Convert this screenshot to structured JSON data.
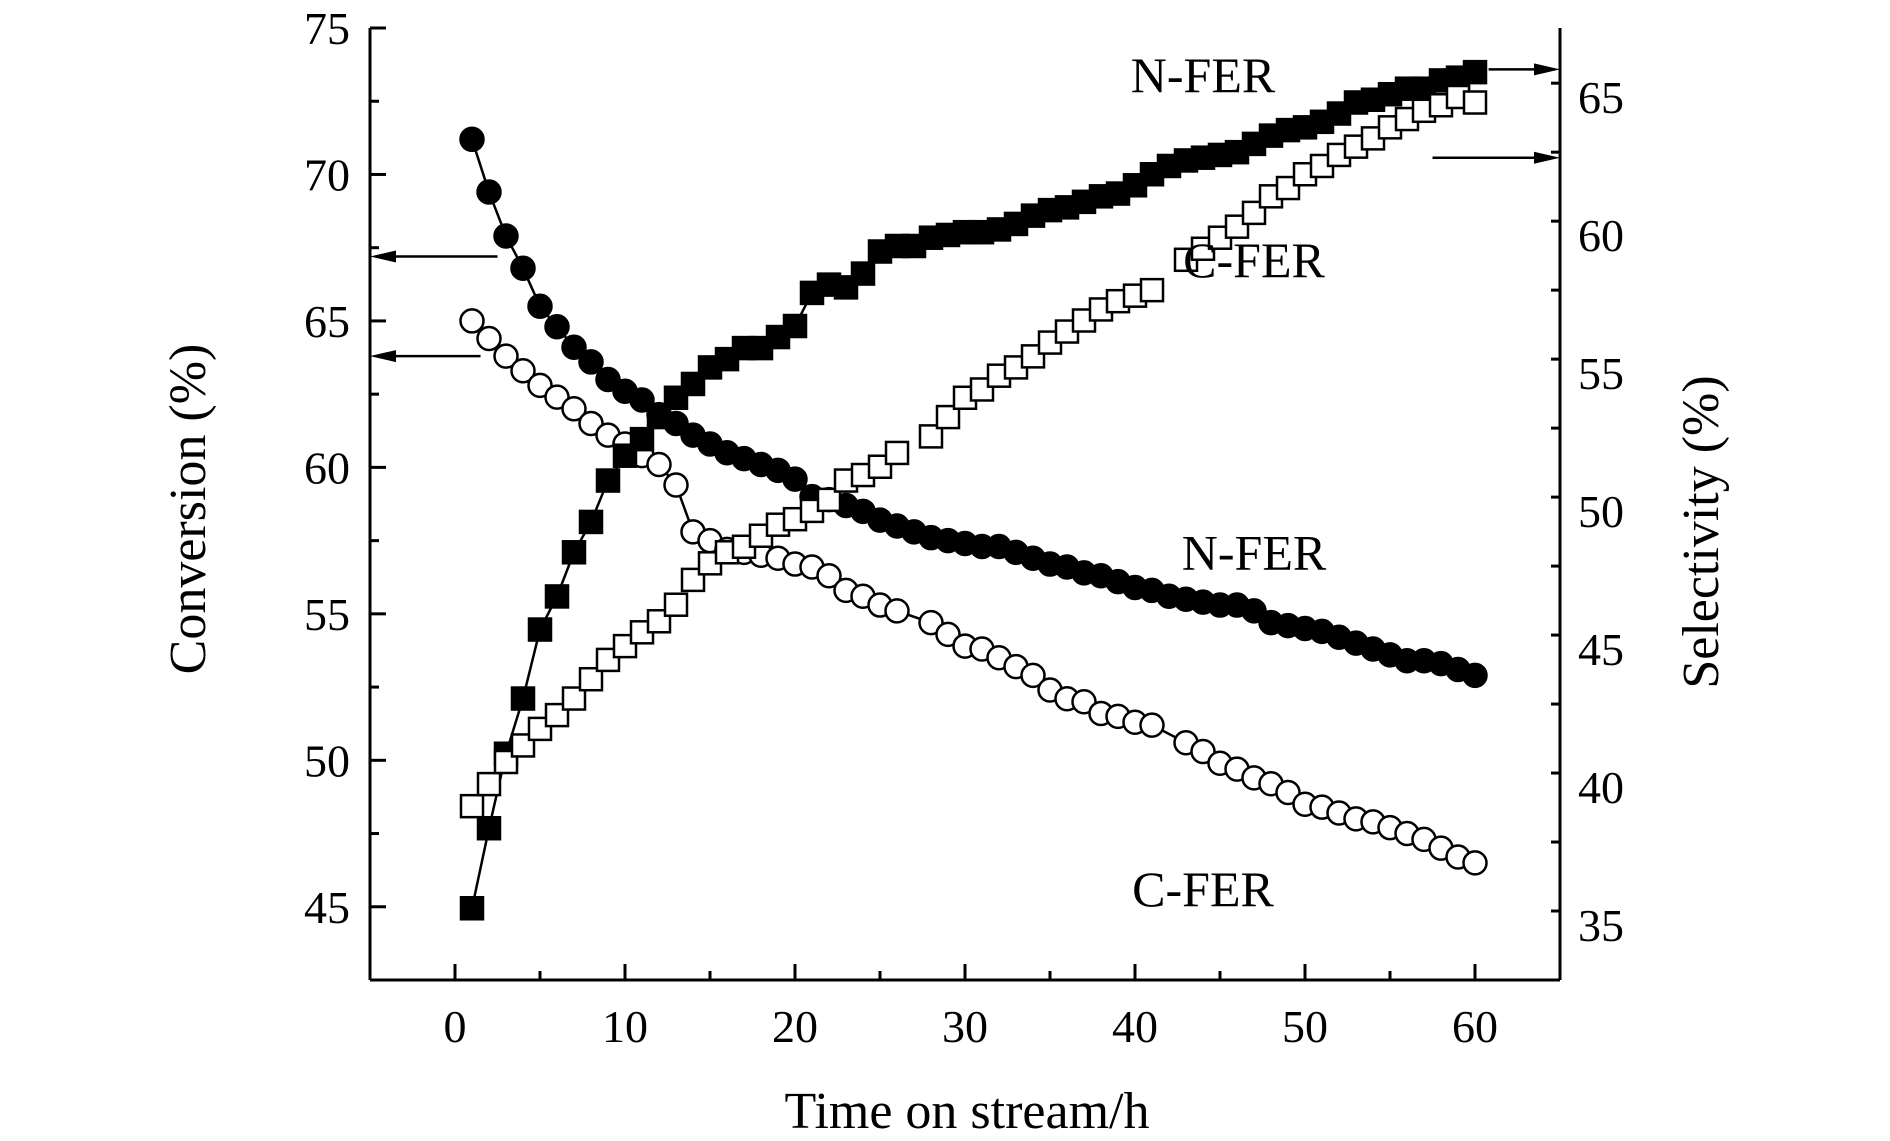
{
  "chart_data": {
    "type": "scatter",
    "xlabel": "Time on stream/h",
    "ylabel_left": "Conversion (%)",
    "ylabel_right": "Selectivity (%)",
    "xlim": [
      -5,
      65
    ],
    "ylim_left": [
      42.5,
      75
    ],
    "ylim_right": [
      33,
      67.5
    ],
    "x_ticks": [
      0,
      10,
      20,
      30,
      40,
      50,
      60
    ],
    "y_ticks_left": [
      45,
      50,
      55,
      60,
      65,
      70,
      75
    ],
    "y_ticks_right": [
      35,
      40,
      45,
      50,
      55,
      60,
      65
    ],
    "annotations": [
      {
        "text": "N-FER",
        "x": 44,
        "y_right": 65.8
      },
      {
        "text": "C-FER",
        "x": 47,
        "y_right": 59.1
      },
      {
        "text": "N-FER",
        "x": 47,
        "y_right": 48.5
      },
      {
        "text": "C-FER",
        "x": 44,
        "y_right": 36.3
      }
    ],
    "arrows": [
      {
        "axis": "left",
        "x_from": 2.5,
        "x_to": -5,
        "y": 67.2
      },
      {
        "axis": "left",
        "x_from": 1.5,
        "x_to": -5,
        "y": 63.8
      },
      {
        "axis": "right",
        "x_from": 60.8,
        "x_to": 65,
        "y": 66
      },
      {
        "axis": "right",
        "x_from": 57.5,
        "x_to": 65,
        "y": 62.8
      }
    ],
    "series": [
      {
        "axis": "left",
        "marker": "circle",
        "fill": "#000000",
        "connected": true,
        "x": [
          1,
          2,
          3,
          4,
          5,
          6,
          7,
          8,
          9,
          10,
          11,
          12,
          13,
          14,
          15,
          16,
          17,
          18,
          19,
          20,
          21,
          22,
          23,
          24,
          25,
          26,
          27,
          28,
          29,
          30,
          31,
          32,
          33,
          34,
          35,
          36,
          37,
          38,
          39,
          40,
          41,
          42,
          43,
          44,
          45,
          46,
          47,
          48,
          49,
          50,
          51,
          52,
          53,
          54,
          55,
          56,
          57,
          58,
          59,
          60
        ],
        "y": [
          71.2,
          69.4,
          67.9,
          66.8,
          65.5,
          64.8,
          64.1,
          63.6,
          63.0,
          62.6,
          62.3,
          61.8,
          61.5,
          61.1,
          60.8,
          60.5,
          60.3,
          60.1,
          59.9,
          59.6,
          59.0,
          58.9,
          58.7,
          58.5,
          58.2,
          58.0,
          57.8,
          57.6,
          57.5,
          57.4,
          57.3,
          57.3,
          57.1,
          56.9,
          56.7,
          56.6,
          56.4,
          56.3,
          56.1,
          55.9,
          55.8,
          55.6,
          55.5,
          55.4,
          55.3,
          55.3,
          55.1,
          54.7,
          54.6,
          54.5,
          54.4,
          54.2,
          54.0,
          53.8,
          53.6,
          53.4,
          53.4,
          53.3,
          53.1,
          52.9
        ]
      },
      {
        "axis": "left",
        "marker": "circle",
        "fill": "#ffffff",
        "connected": true,
        "x": [
          1,
          2,
          3,
          4,
          5,
          6,
          7,
          8,
          9,
          10,
          11,
          12,
          13,
          14,
          15,
          16,
          17,
          18,
          19,
          20,
          21,
          22,
          23,
          24,
          25,
          26,
          28,
          29,
          30,
          31,
          32,
          33,
          34,
          35,
          36,
          37,
          38,
          39,
          40,
          41,
          43,
          44,
          45,
          46,
          47,
          48,
          49,
          50,
          51,
          52,
          53,
          54,
          55,
          56,
          57,
          58,
          59,
          60
        ],
        "y": [
          65.0,
          64.4,
          63.8,
          63.3,
          62.8,
          62.4,
          62.0,
          61.5,
          61.1,
          60.8,
          60.4,
          60.1,
          59.4,
          57.8,
          57.5,
          57.2,
          57.1,
          57.0,
          56.9,
          56.7,
          56.6,
          56.3,
          55.8,
          55.6,
          55.3,
          55.1,
          54.7,
          54.3,
          53.9,
          53.8,
          53.5,
          53.2,
          52.9,
          52.4,
          52.1,
          52.0,
          51.6,
          51.5,
          51.3,
          51.2,
          50.6,
          50.3,
          49.9,
          49.7,
          49.4,
          49.2,
          48.9,
          48.5,
          48.4,
          48.2,
          48.0,
          47.9,
          47.7,
          47.5,
          47.3,
          47.0,
          46.7,
          46.5
        ]
      },
      {
        "axis": "right",
        "marker": "square",
        "fill": "#000000",
        "connected": true,
        "x": [
          1,
          2,
          3,
          4,
          5,
          6,
          7,
          8,
          9,
          10,
          11,
          12,
          13,
          14,
          15,
          16,
          17,
          18,
          19,
          20,
          21,
          22,
          23,
          24,
          25,
          26,
          27,
          28,
          29,
          30,
          31,
          32,
          33,
          34,
          35,
          36,
          37,
          38,
          39,
          40,
          41,
          42,
          43,
          44,
          45,
          46,
          47,
          48,
          49,
          50,
          51,
          52,
          53,
          54,
          55,
          56,
          57,
          58,
          59,
          60
        ],
        "y": [
          35.6,
          38.5,
          41.2,
          43.2,
          45.7,
          46.9,
          48.5,
          49.6,
          51.1,
          52.0,
          52.6,
          53.4,
          54.1,
          54.6,
          55.2,
          55.5,
          55.9,
          55.9,
          56.3,
          56.7,
          57.9,
          58.2,
          58.1,
          58.6,
          59.4,
          59.6,
          59.6,
          59.9,
          60.0,
          60.1,
          60.1,
          60.2,
          60.4,
          60.7,
          60.9,
          61.0,
          61.2,
          61.4,
          61.5,
          61.8,
          62.2,
          62.5,
          62.7,
          62.8,
          62.9,
          63.0,
          63.3,
          63.6,
          63.8,
          63.9,
          64.1,
          64.4,
          64.8,
          64.9,
          65.1,
          65.3,
          65.3,
          65.6,
          65.7,
          65.9
        ]
      },
      {
        "axis": "right",
        "marker": "square",
        "fill": "#ffffff",
        "connected": false,
        "x": [
          1,
          2,
          3,
          4,
          5,
          6,
          7,
          8,
          9,
          10,
          11,
          12,
          13,
          14,
          15,
          16,
          17,
          18,
          19,
          20,
          21,
          22,
          23,
          24,
          25,
          26,
          28,
          29,
          30,
          31,
          32,
          33,
          34,
          35,
          36,
          37,
          38,
          39,
          40,
          41,
          43,
          44,
          45,
          46,
          47,
          48,
          49,
          50,
          51,
          52,
          53,
          54,
          55,
          56,
          57,
          58,
          59,
          60
        ],
        "y": [
          39.3,
          40.1,
          40.9,
          41.5,
          42.1,
          42.6,
          43.2,
          43.9,
          44.6,
          45.1,
          45.6,
          46.0,
          46.6,
          47.5,
          48.1,
          48.5,
          48.7,
          49.1,
          49.5,
          49.7,
          50.0,
          50.4,
          51.1,
          51.3,
          51.6,
          52.1,
          52.7,
          53.4,
          54.1,
          54.4,
          54.9,
          55.2,
          55.6,
          56.1,
          56.5,
          56.9,
          57.3,
          57.6,
          57.8,
          58.0,
          59.1,
          59.5,
          59.9,
          60.3,
          60.8,
          61.4,
          61.7,
          62.2,
          62.5,
          62.9,
          63.2,
          63.5,
          63.9,
          64.2,
          64.5,
          64.7,
          65.0,
          64.8
        ]
      }
    ]
  }
}
